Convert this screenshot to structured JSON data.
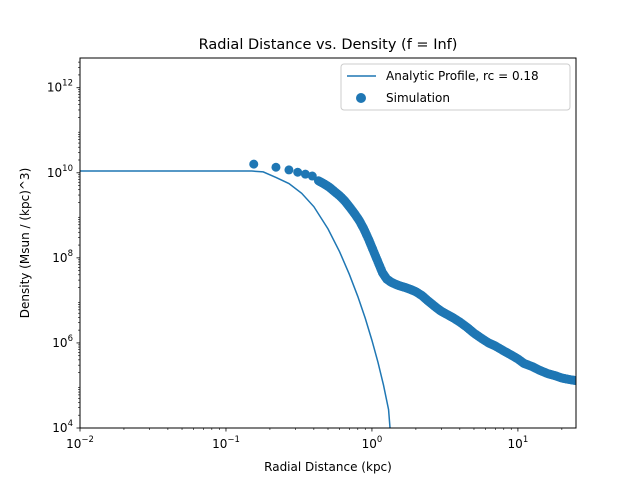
{
  "chart_data": {
    "type": "line",
    "title": "Radial Distance vs. Density (f = Inf)",
    "xlabel": "Radial Distance (kpc)",
    "ylabel": "Density (Msun / (kpc)^3)",
    "xscale": "log",
    "yscale": "log",
    "xlim": [
      0.01,
      25
    ],
    "ylim": [
      10000,
      5000000000000
    ],
    "grid": false,
    "legend_position": "top-right",
    "x_ticks": [
      {
        "value": 0.01,
        "base": "10",
        "exp": "−2"
      },
      {
        "value": 0.1,
        "base": "10",
        "exp": "−1"
      },
      {
        "value": 1,
        "base": "10",
        "exp": "0"
      },
      {
        "value": 10,
        "base": "10",
        "exp": "1"
      }
    ],
    "y_ticks": [
      {
        "value": 10000,
        "base": "10",
        "exp": "4"
      },
      {
        "value": 1000000,
        "base": "10",
        "exp": "6"
      },
      {
        "value": 100000000,
        "base": "10",
        "exp": "8"
      },
      {
        "value": 10000000000,
        "base": "10",
        "exp": "10"
      },
      {
        "value": 1000000000000,
        "base": "10",
        "exp": "12"
      }
    ],
    "series": [
      {
        "name": "Analytic Profile, rc = 0.18",
        "kind": "line",
        "color": "#1f77b4",
        "x": [
          0.01,
          0.02,
          0.05,
          0.1,
          0.15,
          0.18,
          0.22,
          0.27,
          0.33,
          0.4,
          0.5,
          0.6,
          0.7,
          0.8,
          0.9,
          1.0,
          1.1,
          1.2,
          1.3,
          1.33
        ],
        "y": [
          11000000000,
          11000000000,
          11000000000,
          11000000000,
          11000000000,
          10500000000,
          7800000000,
          5600000000,
          3300000000,
          1600000000,
          480000000,
          140000000,
          41000000,
          12400000,
          3800000,
          1150000,
          350000,
          102000,
          27000,
          10000
        ]
      },
      {
        "name": "Simulation",
        "kind": "scatter",
        "color": "#1f77b4",
        "x": [
          0.155,
          0.22,
          0.27,
          0.31,
          0.35,
          0.39,
          0.43,
          0.47,
          0.51,
          0.55,
          0.6,
          0.65,
          0.7,
          0.76,
          0.82,
          0.88,
          0.95,
          1.02,
          1.1,
          1.18,
          1.26,
          1.35,
          1.45,
          1.55,
          1.7,
          1.85,
          2.0,
          2.2,
          2.4,
          2.6,
          2.8,
          3.0,
          3.3,
          3.6,
          4.0,
          4.5,
          5.0,
          5.6,
          6.3,
          7.0,
          8.0,
          9.0,
          10.0,
          11.0,
          12.5,
          14.0,
          16.0,
          18.0,
          20.0,
          22.0,
          25.0
        ],
        "y": [
          16000000000,
          13500000000,
          11700000000,
          10300000000,
          9300000000,
          8400000000,
          6500000000,
          5500000000,
          4600000000,
          3700000000,
          2900000000,
          2200000000,
          1600000000,
          1100000000,
          750000000,
          480000000,
          270000000,
          150000000,
          80000000,
          45000000,
          32000000,
          27000000,
          24000000,
          22000000,
          20000000,
          18000000,
          16000000,
          13000000,
          10000000,
          8000000,
          6500000,
          5500000,
          4600000,
          3900000,
          3100000,
          2300000,
          1700000,
          1300000,
          1000000,
          850000,
          650000,
          520000,
          420000,
          330000,
          280000,
          230000,
          190000,
          170000,
          150000,
          140000,
          130000
        ]
      }
    ]
  }
}
